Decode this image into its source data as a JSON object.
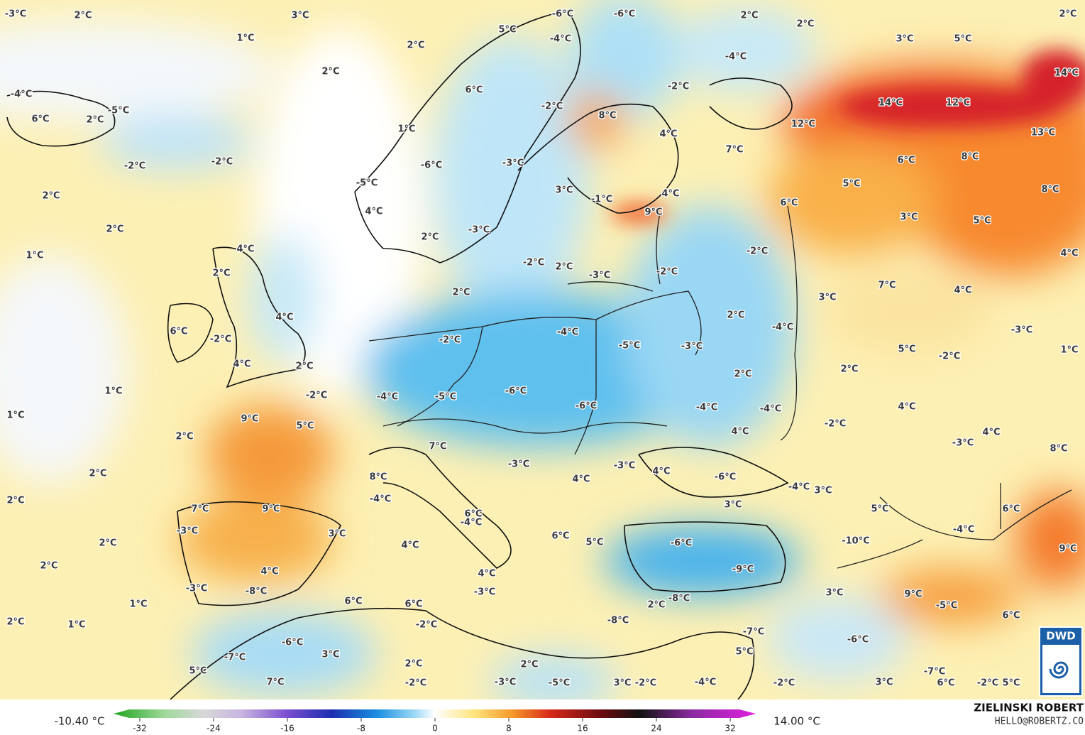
{
  "labels": [
    "-3°C",
    "2°C",
    "3°C",
    "1°C",
    "2°C",
    "2°C",
    "5°C",
    "-4°C",
    "-6°C",
    "-6°C",
    "2°C",
    "2°C",
    "-4°C",
    "3°C",
    "5°C",
    "2°C",
    "14°C",
    "-4°C",
    "6°C",
    "2°C",
    "-5°C",
    "6°C",
    "-2°C",
    "-2°C",
    "8°C",
    "14°C",
    "12°C",
    "12°C",
    "13°C",
    "1°C",
    "4°C",
    "7°C",
    "-2°C",
    "-2°C",
    "-6°C",
    "-3°C",
    "6°C",
    "8°C",
    "2°C",
    "-5°C",
    "3°C",
    "-1°C",
    "4°C",
    "5°C",
    "8°C",
    "6°C",
    "4°C",
    "2°C",
    "9°C",
    "3°C",
    "5°C",
    "2°C",
    "-3°C",
    "1°C",
    "4°C",
    "-2°C",
    "4°C",
    "2°C",
    "-2°C",
    "2°C",
    "-3°C",
    "-2°C",
    "7°C",
    "4°C",
    "2°C",
    "3°C",
    "4°C",
    "2°C",
    "6°C",
    "-2°C",
    "-2°C",
    "-4°C",
    "-5°C",
    "-4°C",
    "-3°C",
    "-3°C",
    "5°C",
    "-2°C",
    "1°C",
    "4°C",
    "2°C",
    "2°C",
    "2°C",
    "1°C",
    "-2°C",
    "-4°C",
    "-5°C",
    "-6°C",
    "-6°C",
    "4°C",
    "-4°C",
    "-4°C",
    "1°C",
    "9°C",
    "5°C",
    "-2°C",
    "4°C",
    "4°C",
    "2°C",
    "7°C",
    "-3°C",
    "8°C",
    "-3°C",
    "-3°C",
    "4°C",
    "2°C",
    "8°C",
    "4°C",
    "-6°C",
    "-4°C",
    "3°C",
    "2°C",
    "-4°C",
    "7°C",
    "9°C",
    "3°C",
    "5°C",
    "6°C",
    "6°C",
    "-4°C",
    "-4°C",
    "-3°C",
    "3°C",
    "6°C",
    "2°C",
    "5°C",
    "-6°C",
    "-10°C",
    "4°C",
    "9°C",
    "2°C",
    "-9°C",
    "4°C",
    "4°C",
    "-3°C",
    "-8°C",
    "-3°C",
    "3°C",
    "9°C",
    "-5°C",
    "1°C",
    "6°C",
    "6°C",
    "-8°C",
    "2°C",
    "-8°C",
    "6°C",
    "-2°C",
    "1°C",
    "2°C",
    "-7°C",
    "-6°C",
    "-6°C",
    "3°C",
    "-7°C",
    "5°C",
    "5°C",
    "-7°C",
    "2°C",
    "2°C",
    "7°C",
    "-2°C",
    "-3°C",
    "-5°C",
    "3°C",
    "-2°C",
    "-4°C",
    "-2°C",
    "3°C",
    "6°C",
    "-2°C",
    "5°C"
  ],
  "legend": {
    "min": "-10.40 °C",
    "max": "14.00 °C",
    "ticks": [
      -32,
      -24,
      -16,
      -8,
      0,
      8,
      16,
      24,
      32
    ]
  },
  "credits": {
    "author": "ZIELINSKI ROBERT",
    "contact": "HELLO@ROBERTZ.CO"
  },
  "logo": "DWD"
}
